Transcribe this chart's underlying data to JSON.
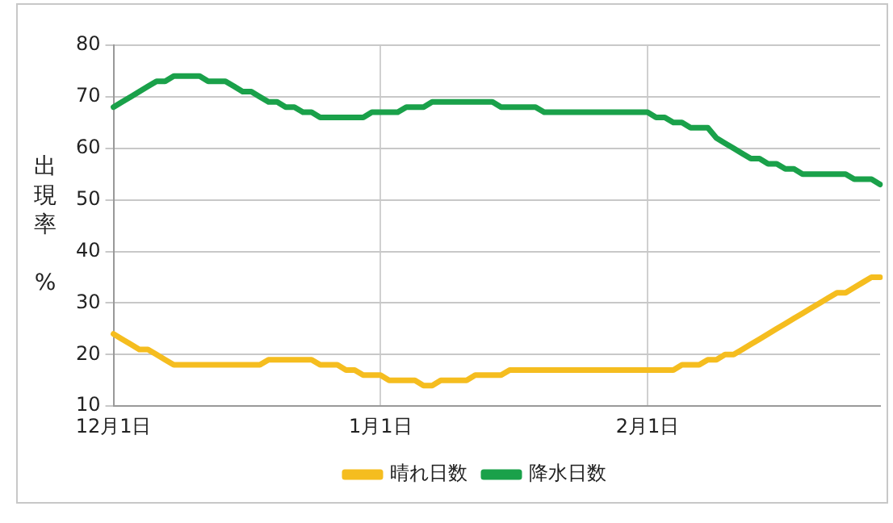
{
  "chart_data": {
    "type": "line",
    "ylabel": "出現率 %",
    "categories": [
      "12月1日",
      null,
      null,
      null,
      null,
      null,
      null,
      null,
      null,
      null,
      null,
      null,
      null,
      null,
      null,
      null,
      null,
      null,
      null,
      null,
      null,
      null,
      null,
      null,
      null,
      null,
      null,
      null,
      null,
      null,
      null,
      "1月1日",
      null,
      null,
      null,
      null,
      null,
      null,
      null,
      null,
      null,
      null,
      null,
      null,
      null,
      null,
      null,
      null,
      null,
      null,
      null,
      null,
      null,
      null,
      null,
      null,
      null,
      null,
      null,
      null,
      null,
      null,
      "2月1日",
      null,
      null,
      null,
      null,
      null,
      null,
      null,
      null,
      null,
      null,
      null,
      null,
      null,
      null,
      null,
      null,
      null,
      null,
      null,
      null,
      null,
      null,
      null,
      null,
      null,
      null,
      null
    ],
    "series": [
      {
        "name": "晴れ日数",
        "color": "#f5bd1f",
        "values": [
          24,
          23,
          22,
          21,
          21,
          20,
          19,
          18,
          18,
          18,
          18,
          18,
          18,
          18,
          18,
          18,
          18,
          18,
          19,
          19,
          19,
          19,
          19,
          19,
          18,
          18,
          18,
          17,
          17,
          16,
          16,
          16,
          15,
          15,
          15,
          15,
          14,
          14,
          15,
          15,
          15,
          15,
          16,
          16,
          16,
          16,
          17,
          17,
          17,
          17,
          17,
          17,
          17,
          17,
          17,
          17,
          17,
          17,
          17,
          17,
          17,
          17,
          17,
          17,
          17,
          17,
          18,
          18,
          18,
          19,
          19,
          20,
          20,
          21,
          22,
          23,
          24,
          25,
          26,
          27,
          28,
          29,
          30,
          31,
          32,
          32,
          33,
          34,
          35,
          35
        ]
      },
      {
        "name": "降水日数",
        "color": "#1aa14a",
        "values": [
          68,
          69,
          70,
          71,
          72,
          73,
          73,
          74,
          74,
          74,
          74,
          73,
          73,
          73,
          72,
          71,
          71,
          70,
          69,
          69,
          68,
          68,
          67,
          67,
          66,
          66,
          66,
          66,
          66,
          66,
          67,
          67,
          67,
          67,
          68,
          68,
          68,
          69,
          69,
          69,
          69,
          69,
          69,
          69,
          69,
          68,
          68,
          68,
          68,
          68,
          67,
          67,
          67,
          67,
          67,
          67,
          67,
          67,
          67,
          67,
          67,
          67,
          67,
          66,
          66,
          65,
          65,
          64,
          64,
          64,
          62,
          61,
          60,
          59,
          58,
          58,
          57,
          57,
          56,
          56,
          55,
          55,
          55,
          55,
          55,
          55,
          54,
          54,
          54,
          53
        ]
      }
    ],
    "ylim": [
      10,
      80
    ],
    "yticks": [
      10,
      20,
      30,
      40,
      50,
      60,
      70,
      80
    ],
    "grid": true,
    "legend": "bottom",
    "marker": "none",
    "line_style": "solid"
  }
}
